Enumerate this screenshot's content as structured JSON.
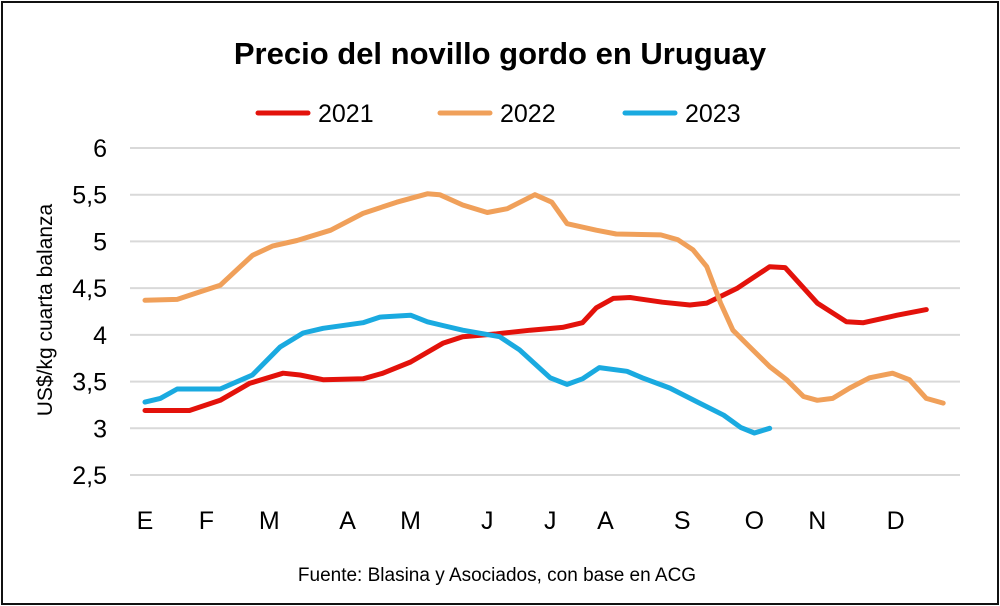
{
  "chart_data": {
    "type": "line",
    "title": "Precio del novillo gordo en Uruguay",
    "ylabel": "US$/kg cuarta balanza",
    "xlabel": "",
    "ylim": [
      2.5,
      6
    ],
    "yticks": [
      "2,5",
      "3",
      "3,5",
      "4",
      "4,5",
      "5",
      "5,5",
      "6"
    ],
    "xtick_labels": [
      "E",
      "F",
      "M",
      "A",
      "M",
      "J",
      "J",
      "A",
      "S",
      "O",
      "N",
      "D"
    ],
    "grid": true,
    "legend_position": "top",
    "source": "Fuente: Blasina y Asociados, con base en ACG",
    "series": [
      {
        "name": "2021",
        "color": "#e3120b",
        "points": [
          [
            1,
            3.19
          ],
          [
            3.9,
            3.19
          ],
          [
            5.9,
            3.3
          ],
          [
            7.8,
            3.48
          ],
          [
            10.0,
            3.59
          ],
          [
            11.1,
            3.57
          ],
          [
            12.6,
            3.52
          ],
          [
            15.2,
            3.53
          ],
          [
            16.5,
            3.59
          ],
          [
            18.3,
            3.71
          ],
          [
            20.4,
            3.91
          ],
          [
            21.7,
            3.98
          ],
          [
            23.9,
            4.01
          ],
          [
            26.1,
            4.05
          ],
          [
            28.2,
            4.08
          ],
          [
            29.5,
            4.13
          ],
          [
            30.4,
            4.29
          ],
          [
            31.5,
            4.39
          ],
          [
            32.6,
            4.4
          ],
          [
            34.7,
            4.35
          ],
          [
            36.5,
            4.32
          ],
          [
            37.6,
            4.34
          ],
          [
            39.6,
            4.5
          ],
          [
            41.7,
            4.73
          ],
          [
            42.7,
            4.72
          ],
          [
            44.8,
            4.34
          ],
          [
            46.7,
            4.14
          ],
          [
            47.8,
            4.13
          ],
          [
            50.0,
            4.21
          ],
          [
            51.9,
            4.27
          ]
        ]
      },
      {
        "name": "2022",
        "color": "#f0a05a",
        "points": [
          [
            1,
            4.37
          ],
          [
            3.1,
            4.38
          ],
          [
            4.4,
            4.45
          ],
          [
            5.9,
            4.53
          ],
          [
            7.2,
            4.73
          ],
          [
            8.0,
            4.85
          ],
          [
            9.3,
            4.95
          ],
          [
            10.9,
            5.01
          ],
          [
            13.1,
            5.12
          ],
          [
            15.2,
            5.3
          ],
          [
            17.4,
            5.42
          ],
          [
            19.4,
            5.51
          ],
          [
            20.2,
            5.5
          ],
          [
            21.7,
            5.39
          ],
          [
            23.3,
            5.31
          ],
          [
            24.6,
            5.35
          ],
          [
            26.4,
            5.5
          ],
          [
            27.5,
            5.42
          ],
          [
            28.5,
            5.19
          ],
          [
            30.4,
            5.12
          ],
          [
            31.7,
            5.08
          ],
          [
            34.6,
            5.07
          ],
          [
            35.7,
            5.02
          ],
          [
            36.7,
            4.91
          ],
          [
            37.6,
            4.73
          ],
          [
            38.5,
            4.34
          ],
          [
            39.3,
            4.05
          ],
          [
            40.4,
            3.87
          ],
          [
            41.7,
            3.66
          ],
          [
            42.8,
            3.52
          ],
          [
            43.9,
            3.34
          ],
          [
            44.8,
            3.3
          ],
          [
            45.8,
            3.32
          ],
          [
            46.9,
            3.43
          ],
          [
            48.2,
            3.54
          ],
          [
            49.7,
            3.59
          ],
          [
            50.8,
            3.52
          ],
          [
            51.9,
            3.32
          ],
          [
            53.0,
            3.27
          ]
        ]
      },
      {
        "name": "2023",
        "color": "#1aaae0",
        "points": [
          [
            1,
            3.28
          ],
          [
            2.0,
            3.32
          ],
          [
            3.1,
            3.42
          ],
          [
            5.9,
            3.42
          ],
          [
            8.0,
            3.57
          ],
          [
            9.8,
            3.87
          ],
          [
            11.3,
            4.02
          ],
          [
            12.6,
            4.07
          ],
          [
            15.2,
            4.13
          ],
          [
            16.3,
            4.19
          ],
          [
            18.3,
            4.21
          ],
          [
            19.4,
            4.14
          ],
          [
            20.4,
            4.1
          ],
          [
            21.7,
            4.05
          ],
          [
            24.1,
            3.98
          ],
          [
            25.4,
            3.84
          ],
          [
            27.4,
            3.54
          ],
          [
            28.5,
            3.47
          ],
          [
            29.5,
            3.53
          ],
          [
            30.6,
            3.65
          ],
          [
            32.4,
            3.61
          ],
          [
            33.4,
            3.54
          ],
          [
            35.2,
            3.43
          ],
          [
            37.0,
            3.28
          ],
          [
            38.7,
            3.14
          ],
          [
            39.8,
            3.01
          ],
          [
            40.7,
            2.95
          ],
          [
            41.7,
            3.0
          ]
        ]
      }
    ]
  }
}
